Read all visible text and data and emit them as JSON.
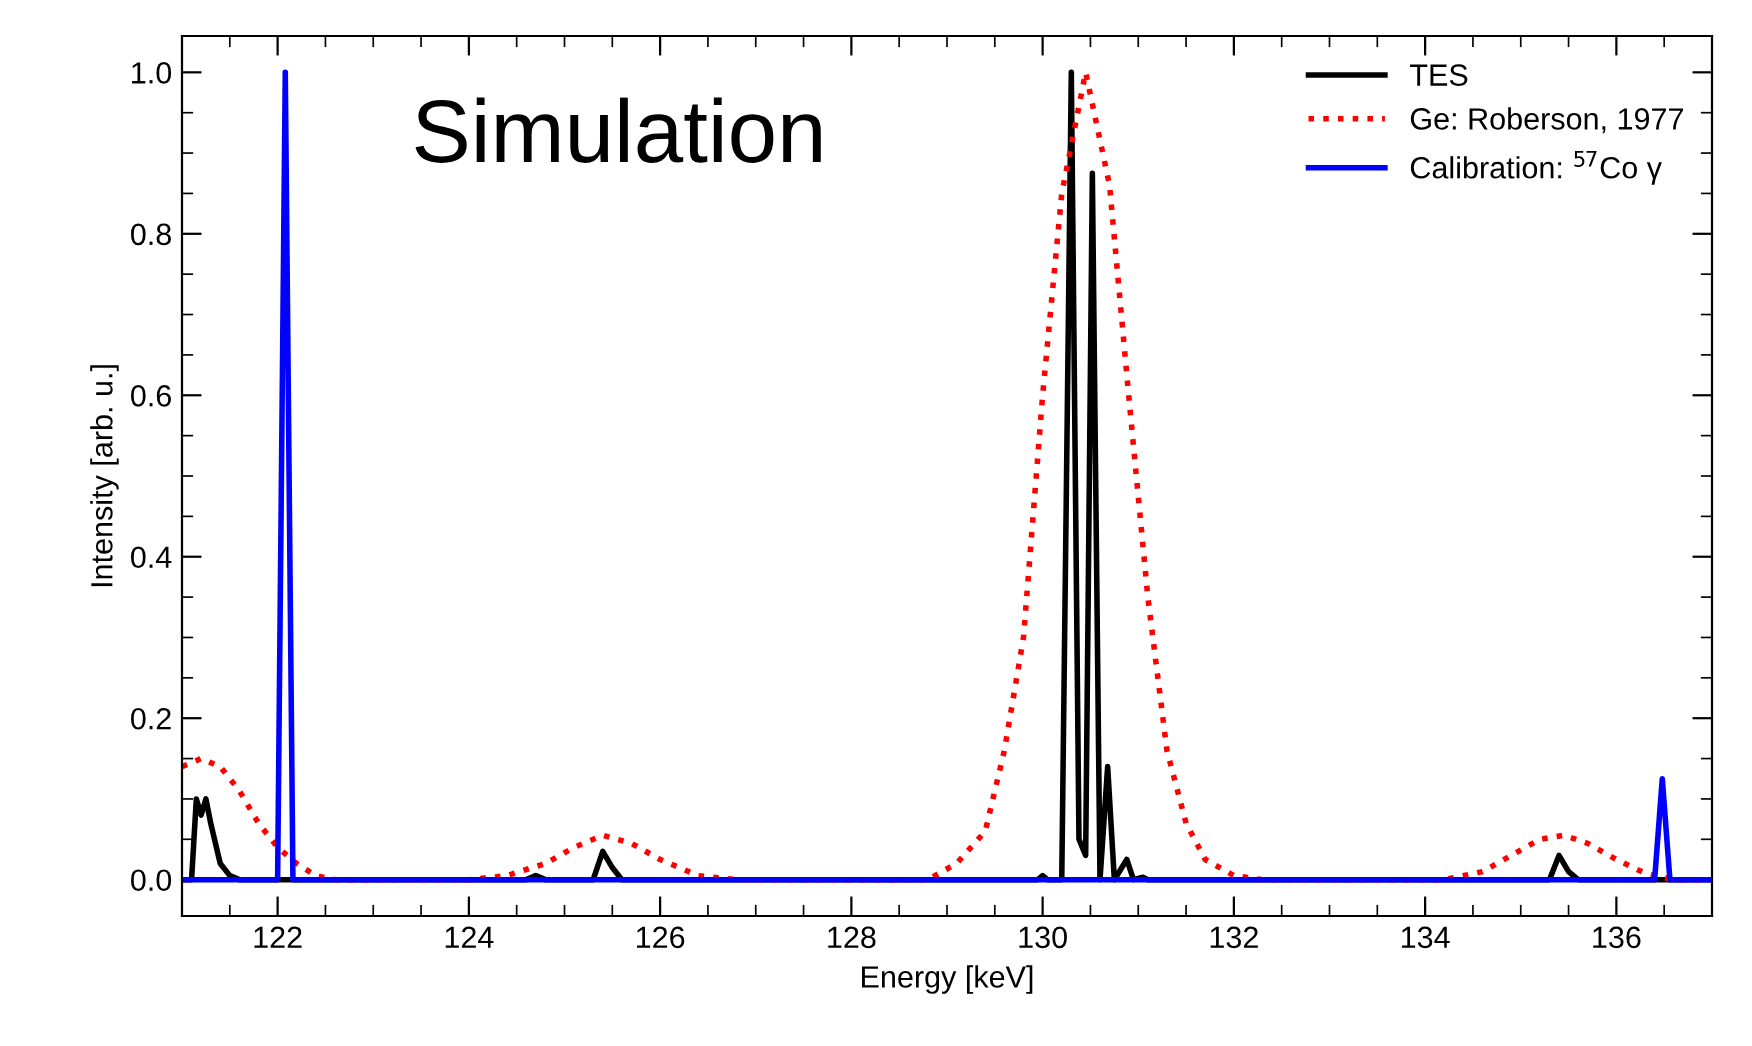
{
  "chart_data": {
    "type": "line",
    "xlabel": "Energy [keV]",
    "ylabel": "Intensity [arb. u.]",
    "annotations": [
      "Simulation"
    ],
    "xlim": [
      121,
      137
    ],
    "xticks": [
      122,
      124,
      126,
      128,
      130,
      132,
      134,
      136
    ],
    "ylim": [
      -0.045,
      1.045
    ],
    "yticks": [
      {
        "value": 0,
        "label": "0.0"
      },
      {
        "value": 0.2,
        "label": "0.2"
      },
      {
        "value": 0.4,
        "label": "0.4"
      },
      {
        "value": 0.6,
        "label": "0.6"
      },
      {
        "value": 0.8,
        "label": "0.8"
      },
      {
        "value": 1.0,
        "label": "1.0"
      }
    ],
    "grid": false,
    "legend": "top right",
    "series": [
      {
        "name": "TES",
        "color": "#000000",
        "line_style": "solid",
        "x": [
          121.0,
          121.1,
          121.15,
          121.2,
          121.25,
          121.3,
          121.4,
          121.5,
          121.6,
          124.6,
          124.7,
          124.8,
          125.3,
          125.4,
          125.5,
          125.6,
          129.95,
          130.0,
          130.05,
          130.2,
          130.3,
          130.38,
          130.45,
          130.52,
          130.6,
          130.68,
          130.75,
          130.88,
          130.95,
          131.05,
          131.1,
          135.3,
          135.4,
          135.5,
          135.6,
          137.0
        ],
        "values": [
          0,
          0,
          0.1,
          0.08,
          0.1,
          0.07,
          0.02,
          0.005,
          0,
          0,
          0.005,
          0,
          0,
          0.035,
          0.015,
          0,
          0,
          0.005,
          0,
          0,
          1.0,
          0.05,
          0.03,
          0.875,
          0,
          0.14,
          0,
          0.025,
          0,
          0.003,
          0,
          0,
          0.03,
          0.01,
          0,
          0
        ]
      },
      {
        "name": "Ge: Roberson, 1977",
        "color": "#ff0000",
        "line_style": "dotted",
        "x": [
          121.0,
          121.2,
          121.4,
          121.6,
          121.8,
          122.0,
          122.2,
          122.4,
          122.6,
          124.0,
          124.4,
          124.8,
          125.1,
          125.4,
          125.7,
          126.0,
          126.4,
          126.8,
          128.8,
          129.1,
          129.4,
          129.6,
          129.8,
          130.0,
          130.2,
          130.45,
          130.7,
          130.9,
          131.1,
          131.3,
          131.5,
          131.7,
          132.0,
          132.3,
          134.2,
          134.6,
          134.9,
          135.2,
          135.45,
          135.7,
          136.0,
          136.3,
          136.6,
          137.0
        ],
        "values": [
          0.14,
          0.15,
          0.14,
          0.11,
          0.07,
          0.04,
          0.02,
          0.005,
          0,
          0,
          0.005,
          0.02,
          0.04,
          0.055,
          0.045,
          0.025,
          0.005,
          0,
          0,
          0.02,
          0.06,
          0.16,
          0.3,
          0.6,
          0.85,
          1.0,
          0.86,
          0.6,
          0.35,
          0.16,
          0.07,
          0.025,
          0.005,
          0,
          0,
          0.01,
          0.03,
          0.05,
          0.055,
          0.045,
          0.025,
          0.008,
          0,
          0
        ]
      },
      {
        "name": "Calibration: $^{57}$Co γ",
        "color": "#0000ff",
        "line_style": "solid",
        "x": [
          121.0,
          122.0,
          122.08,
          122.16,
          136.4,
          136.48,
          136.56,
          137.0
        ],
        "values": [
          0,
          0,
          1.0,
          0,
          0,
          0.125,
          0,
          0
        ]
      }
    ]
  }
}
